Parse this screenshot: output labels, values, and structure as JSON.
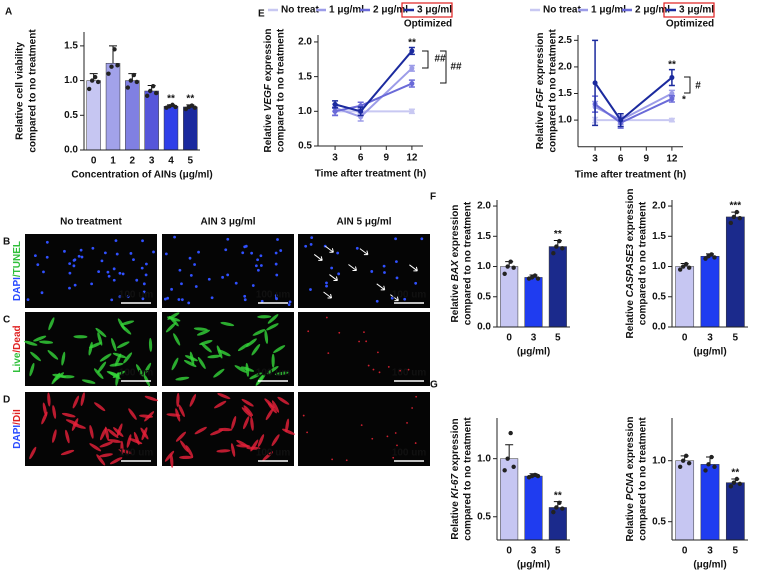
{
  "chart_data": [
    {
      "type": "bar",
      "panel": "A",
      "ylabel": [
        "Relative cell viability",
        "compared to no treatment"
      ],
      "xlabel": "Concentration of AINs (μg/ml)",
      "categories": [
        "0",
        "1",
        "2",
        "3",
        "4",
        "5"
      ],
      "values": [
        1.0,
        1.25,
        1.0,
        0.85,
        0.63,
        0.62
      ],
      "errors": [
        0.1,
        0.25,
        0.1,
        0.08,
        0.02,
        0.03
      ],
      "points": [
        [
          0.88,
          1.0,
          1.05,
          0.98
        ],
        [
          1.1,
          1.2,
          1.45,
          1.22
        ],
        [
          0.9,
          1.0,
          1.08,
          0.98
        ],
        [
          0.78,
          0.85,
          0.92,
          0.82
        ],
        [
          0.61,
          0.63,
          0.65,
          0.62
        ],
        [
          0.59,
          0.62,
          0.64,
          0.61
        ]
      ],
      "colors": [
        "#c6c6f2",
        "#a2a2ea",
        "#8080e2",
        "#5656da",
        "#2f3fe8",
        "#1b2a9e"
      ],
      "annotations": [
        null,
        null,
        null,
        null,
        "**",
        "**"
      ],
      "ylim": [
        0,
        1.7
      ],
      "yticks": [
        {
          "value": 0,
          "label": "0.0"
        },
        {
          "value": 0.5,
          "label": "0.5"
        },
        {
          "value": 1,
          "label": "1.0"
        },
        {
          "value": 1.5,
          "label": "1.5"
        }
      ]
    },
    {
      "type": "line",
      "panel": "E",
      "ylabel": [
        [
          "Relative ",
          "VEGF",
          " expression"
        ],
        "compared to no treatment"
      ],
      "xlabel": "Time after treatment (h)",
      "x": [
        3,
        6,
        12
      ],
      "xlim": [
        1,
        13.3
      ],
      "xticks": [
        3,
        6,
        9,
        12
      ],
      "ylim": [
        0.5,
        2.1
      ],
      "yticks": [
        {
          "value": 0.5,
          "label": "0.5"
        },
        {
          "value": 1,
          "label": "1.0"
        },
        {
          "value": 1.5,
          "label": "1.5"
        },
        {
          "value": 2,
          "label": "2.0"
        }
      ],
      "series": [
        {
          "name": "No treat",
          "color": "#c8c8f2",
          "values": [
            1.0,
            1.0,
            1.0
          ],
          "errors": [
            0.05,
            0.04,
            0.03
          ]
        },
        {
          "name": "1 μg/ml",
          "color": "#9c9ce8",
          "values": [
            1.05,
            0.92,
            1.62
          ],
          "errors": [
            0.05,
            0.06,
            0.04
          ]
        },
        {
          "name": "2 μg/ml",
          "color": "#6a6ad8",
          "values": [
            1.0,
            1.08,
            1.4
          ],
          "errors": [
            0.06,
            0.05,
            0.05
          ]
        },
        {
          "name": "3 μg/ml",
          "color": "#1b2a9e",
          "values": [
            1.1,
            1.0,
            1.87
          ],
          "errors": [
            0.05,
            0.06,
            0.05
          ]
        }
      ],
      "legend_note": "Optimized",
      "annotations": [
        "**",
        "##",
        "##"
      ]
    },
    {
      "type": "line",
      "panel": null,
      "ylabel": [
        [
          "Relative ",
          "FGF",
          " expression"
        ],
        "compared to no treatment"
      ],
      "xlabel": "Time after treatment (h)",
      "x": [
        3,
        6,
        12
      ],
      "xlim": [
        1,
        13.3
      ],
      "xticks": [
        3,
        6,
        9,
        12
      ],
      "ylim": [
        0.5,
        2.6
      ],
      "yticks": [
        {
          "value": 1,
          "label": "1.0"
        },
        {
          "value": 1.5,
          "label": "1.5"
        },
        {
          "value": 2,
          "label": "2.0"
        },
        {
          "value": 2.5,
          "label": "2.5"
        }
      ],
      "series": [
        {
          "name": "No treat",
          "color": "#c8c8f2",
          "values": [
            1.0,
            1.0,
            1.0
          ],
          "errors": [
            0.05,
            0.05,
            0.03
          ]
        },
        {
          "name": "1 μg/ml",
          "color": "#9c9ce8",
          "values": [
            1.25,
            1.0,
            1.5
          ],
          "errors": [
            0.1,
            0.08,
            0.06
          ]
        },
        {
          "name": "2 μg/ml",
          "color": "#6a6ad8",
          "values": [
            1.3,
            0.95,
            1.4
          ],
          "errors": [
            0.15,
            0.1,
            0.06
          ]
        },
        {
          "name": "3 μg/ml",
          "color": "#1b2a9e",
          "values": [
            1.7,
            1.0,
            1.8
          ],
          "errors": [
            0.8,
            0.12,
            0.15
          ]
        }
      ],
      "legend_note": "Optimized",
      "annotations": [
        "**",
        "#",
        "*"
      ]
    },
    {
      "type": "bar",
      "panel": "F",
      "ylabel": [
        [
          "Relative ",
          "BAX",
          " expression"
        ],
        "compared to no treatment"
      ],
      "xlabel": "(μg/ml)",
      "categories": [
        "0",
        "3",
        "5"
      ],
      "values": [
        1.0,
        0.82,
        1.33
      ],
      "errors": [
        0.08,
        0.04,
        0.1
      ],
      "points": [
        [
          0.88,
          1.0,
          1.08,
          0.98
        ],
        [
          0.8,
          0.82,
          0.85,
          0.8
        ],
        [
          1.22,
          1.33,
          1.42,
          1.3
        ]
      ],
      "colors": [
        "#c6c6f2",
        "#1f3cf0",
        "#1b2a8c"
      ],
      "annotations": [
        null,
        null,
        "**"
      ],
      "ylim": [
        0,
        2.1
      ],
      "yticks": [
        {
          "value": 0,
          "label": "0.0"
        },
        {
          "value": 0.5,
          "label": "0.5"
        },
        {
          "value": 1,
          "label": "1.0"
        },
        {
          "value": 1.5,
          "label": "1.5"
        },
        {
          "value": 2,
          "label": "2.0"
        }
      ]
    },
    {
      "type": "bar",
      "panel": null,
      "ylabel": [
        [
          "Relative ",
          "CASPASE3",
          " expression"
        ],
        "compared to no treatment"
      ],
      "xlabel": "(μg/ml)",
      "categories": [
        "0",
        "3",
        "5"
      ],
      "values": [
        1.0,
        1.17,
        1.82
      ],
      "errors": [
        0.05,
        0.04,
        0.08
      ],
      "points": [
        [
          0.95,
          1.0,
          1.04,
          0.98
        ],
        [
          1.13,
          1.17,
          1.2,
          1.15
        ],
        [
          1.72,
          1.82,
          1.9,
          1.8
        ]
      ],
      "colors": [
        "#c6c6f2",
        "#1f3cf0",
        "#1b2a8c"
      ],
      "annotations": [
        null,
        null,
        "***"
      ],
      "ylim": [
        0,
        2.1
      ],
      "yticks": [
        {
          "value": 0,
          "label": "0.0"
        },
        {
          "value": 0.5,
          "label": "0.5"
        },
        {
          "value": 1,
          "label": "1.0"
        },
        {
          "value": 1.5,
          "label": "1.5"
        },
        {
          "value": 2,
          "label": "2.0"
        }
      ]
    },
    {
      "type": "bar",
      "panel": "G",
      "ylabel": [
        [
          "Relative ",
          "KI-67",
          " expression"
        ],
        "compared to no treatment"
      ],
      "xlabel": "(μg/ml)",
      "categories": [
        "0",
        "3",
        "5"
      ],
      "values": [
        1.0,
        0.85,
        0.58
      ],
      "errors": [
        0.12,
        0.02,
        0.05
      ],
      "points": [
        [
          0.9,
          1.0,
          1.22,
          0.93
        ],
        [
          0.84,
          0.85,
          0.86,
          0.85
        ],
        [
          0.54,
          0.58,
          0.62,
          0.57
        ]
      ],
      "colors": [
        "#c6c6f2",
        "#1f3cf0",
        "#1b2a8c"
      ],
      "annotations": [
        null,
        null,
        "**"
      ],
      "ylim": [
        0.3,
        1.35
      ],
      "yticks": [
        {
          "value": 0.5,
          "label": "0.5"
        },
        {
          "value": 1,
          "label": "1.0"
        }
      ]
    },
    {
      "type": "bar",
      "panel": null,
      "ylabel": [
        [
          "Relative ",
          "PCNA",
          " expression"
        ],
        "compared to no treatment"
      ],
      "xlabel": "(μg/ml)",
      "categories": [
        "0",
        "3",
        "5"
      ],
      "values": [
        1.0,
        0.97,
        0.82
      ],
      "errors": [
        0.04,
        0.06,
        0.03
      ],
      "points": [
        [
          0.95,
          1.0,
          1.04,
          0.98
        ],
        [
          0.92,
          0.97,
          1.03,
          0.95
        ],
        [
          0.79,
          0.82,
          0.85,
          0.81
        ]
      ],
      "colors": [
        "#c6c6f2",
        "#1f3cf0",
        "#1b2a8c"
      ],
      "annotations": [
        null,
        null,
        "**"
      ],
      "ylim": [
        0.35,
        1.35
      ],
      "yticks": [
        {
          "value": 0.5,
          "label": "0.5"
        },
        {
          "value": 1,
          "label": "1.0"
        }
      ]
    }
  ],
  "micrographs": {
    "panels": [
      "B",
      "C",
      "D"
    ],
    "columns": [
      "No treatment",
      "AIN 3 μg/ml",
      "AIN 5 μg/ml"
    ],
    "rows": [
      [
        "DAPI",
        "/TUNEL"
      ],
      [
        "Live",
        "/Dead"
      ],
      [
        "DAPI",
        "/DiI"
      ]
    ],
    "scale_bar": "100 um"
  }
}
